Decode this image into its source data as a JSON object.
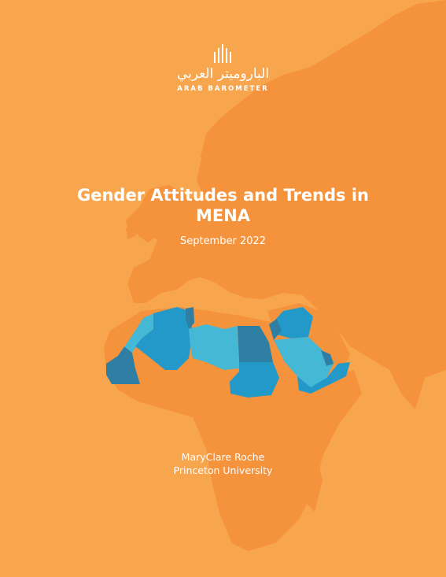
{
  "logo": {
    "arabic": "الباروميتر العربي",
    "english": "ARAB BAROMETER"
  },
  "title": "Gender Attitudes and Trends in MENA",
  "date": "September 2022",
  "author": {
    "name": "MaryClare Roche",
    "affiliation": "Princeton University"
  },
  "colors": {
    "background": "#f8a64e",
    "landmass": "#f5923c",
    "mena_light": "#45b8d6",
    "mena_mid": "#2299c8",
    "mena_dark": "#2f7fa4",
    "text": "#ffffff"
  }
}
